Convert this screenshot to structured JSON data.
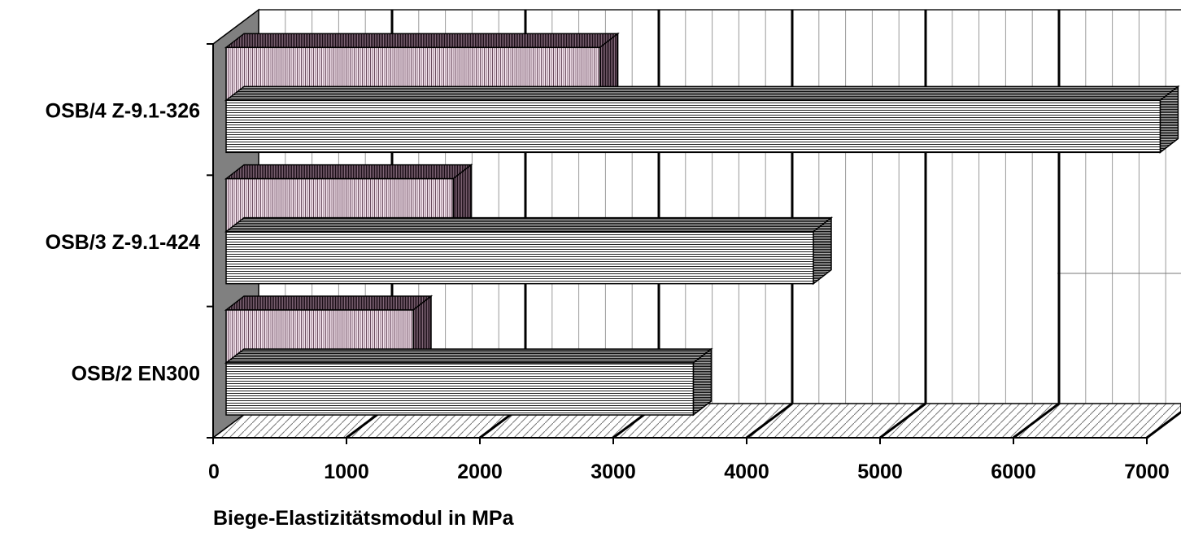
{
  "chart_data": {
    "type": "bar",
    "orientation": "horizontal",
    "style": "3d",
    "categories": [
      "OSB/2 EN300",
      "OSB/3 Z-9.1-424",
      "OSB/4 Z-9.1-326"
    ],
    "series": [
      {
        "values": [
          3600,
          4500,
          7100
        ],
        "pattern": "horizontal-lines",
        "color": "#ffffff"
      },
      {
        "values": [
          1500,
          1800,
          2900
        ],
        "pattern": "vertical-lines",
        "color": "#f4e4ee"
      }
    ],
    "xlabel": "Biege-Elastizitätsmodul in MPa",
    "ylabel": "",
    "xlim": [
      0,
      7000
    ],
    "x_ticks": [
      "0",
      "1000",
      "2000",
      "3000",
      "4000",
      "5000",
      "6000",
      "7000"
    ],
    "grid": true,
    "legend": "none"
  }
}
